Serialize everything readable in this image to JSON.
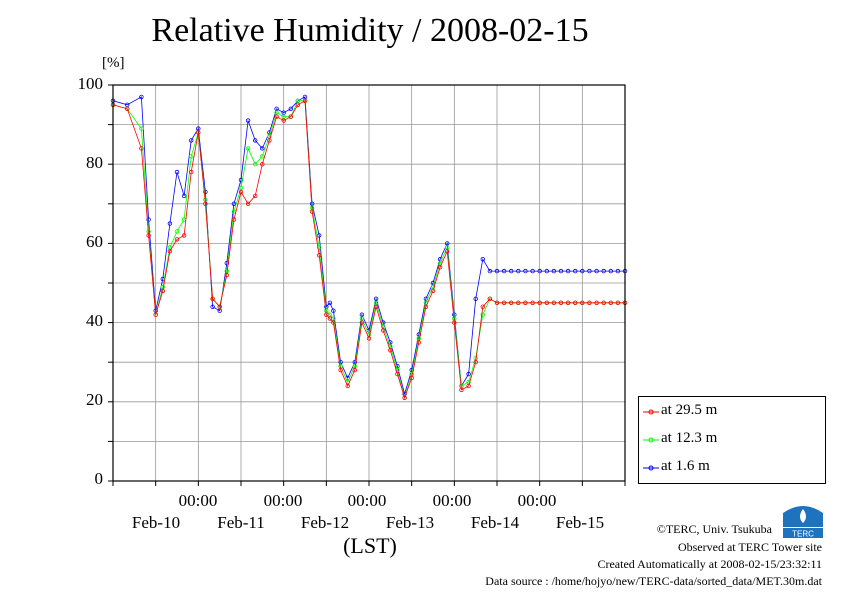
{
  "title": "Relative Humidity / 2008-02-15",
  "unit_label": "[%]",
  "yticks": [
    "100",
    "80",
    "60",
    "40",
    "20",
    "0"
  ],
  "xticks_time": [
    "00:00",
    "00:00",
    "00:00",
    "00:00",
    "00:00"
  ],
  "xticks_day": [
    "Feb-10",
    "Feb-11",
    "Feb-12",
    "Feb-13",
    "Feb-14",
    "Feb-15"
  ],
  "xlabel": "(LST)",
  "legend": [
    {
      "label": "at 29.5 m",
      "color": "#ff0000"
    },
    {
      "label": "at 12.3 m",
      "color": "#00ff00"
    },
    {
      "label": "at 1.6 m",
      "color": "#0000ff"
    }
  ],
  "footer": {
    "copyright": "©TERC, Univ. Tsukuba",
    "observed": "Observed at TERC Tower site",
    "created": "Created Automatically at 2008-02-15/23:32:11",
    "source": "Data source : /home/hojyo/new/TERC-data/sorted_data/MET.30m.dat"
  },
  "logo_text": "TERC",
  "chart_data": {
    "type": "line",
    "title": "Relative Humidity / 2008-02-15",
    "ylabel": "[%]",
    "xlabel": "(LST)",
    "ylim": [
      0,
      100
    ],
    "xlim_hours_from_Feb09_12": [
      0,
      144
    ],
    "grid": true,
    "legend_position": "bottom-right outside",
    "x_hours_from_Feb09_12": [
      0,
      4,
      8,
      10,
      12,
      14,
      16,
      18,
      20,
      22,
      24,
      26,
      28,
      30,
      32,
      34,
      36,
      38,
      40,
      42,
      44,
      46,
      48,
      50,
      52,
      54,
      56,
      58,
      60,
      61,
      62,
      64,
      66,
      68,
      70,
      72,
      74,
      76,
      78,
      80,
      82,
      84,
      86,
      88,
      90,
      92,
      94,
      96,
      98,
      100,
      102,
      104,
      106,
      108,
      110,
      112,
      114,
      116,
      118,
      120,
      122,
      124,
      126,
      128,
      130,
      132,
      134,
      136,
      138,
      140,
      142,
      144
    ],
    "series": [
      {
        "name": "at 29.5 m",
        "color": "#ff0000",
        "values": [
          95,
          94,
          84,
          62,
          42,
          48,
          58,
          61,
          62,
          78,
          88,
          70,
          46,
          44,
          52,
          66,
          73,
          70,
          72,
          80,
          86,
          92,
          91,
          92,
          95,
          96,
          68,
          57,
          42,
          41,
          40,
          28,
          24,
          28,
          40,
          36,
          44,
          38,
          33,
          27,
          21,
          26,
          35,
          44,
          48,
          54,
          58,
          40,
          23,
          24,
          30,
          44,
          46,
          45,
          45,
          45,
          45,
          45,
          45,
          45,
          45,
          45,
          45,
          45,
          45,
          45,
          45,
          45,
          45,
          45,
          45,
          45
        ]
      },
      {
        "name": "at 12.3 m",
        "color": "#00ff00",
        "values": [
          95,
          94,
          89,
          63,
          42,
          49,
          59,
          63,
          66,
          82,
          88,
          71,
          46,
          44,
          53,
          68,
          74,
          84,
          80,
          82,
          87,
          93,
          92,
          92,
          96,
          96,
          69,
          59,
          43,
          42,
          41,
          29,
          25,
          29,
          41,
          37,
          45,
          39,
          34,
          28,
          21,
          27,
          36,
          45,
          49,
          55,
          59,
          41,
          24,
          25,
          31,
          42,
          46,
          45,
          45,
          45,
          45,
          45,
          45,
          45,
          45,
          45,
          45,
          45,
          45,
          45,
          45,
          45,
          45,
          45,
          45,
          45
        ]
      },
      {
        "name": "at 1.6 m",
        "color": "#0000ff",
        "values": [
          96,
          95,
          97,
          66,
          43,
          51,
          65,
          78,
          72,
          86,
          89,
          73,
          44,
          43,
          55,
          70,
          76,
          91,
          86,
          84,
          88,
          94,
          93,
          94,
          96,
          97,
          70,
          62,
          44,
          45,
          43,
          30,
          26,
          30,
          42,
          38,
          46,
          40,
          35,
          29,
          22,
          28,
          37,
          46,
          50,
          56,
          60,
          42,
          24,
          27,
          46,
          56,
          53,
          53,
          53,
          53,
          53,
          53,
          53,
          53,
          53,
          53,
          53,
          53,
          53,
          53,
          53,
          53,
          53,
          53,
          53,
          53
        ]
      }
    ]
  }
}
